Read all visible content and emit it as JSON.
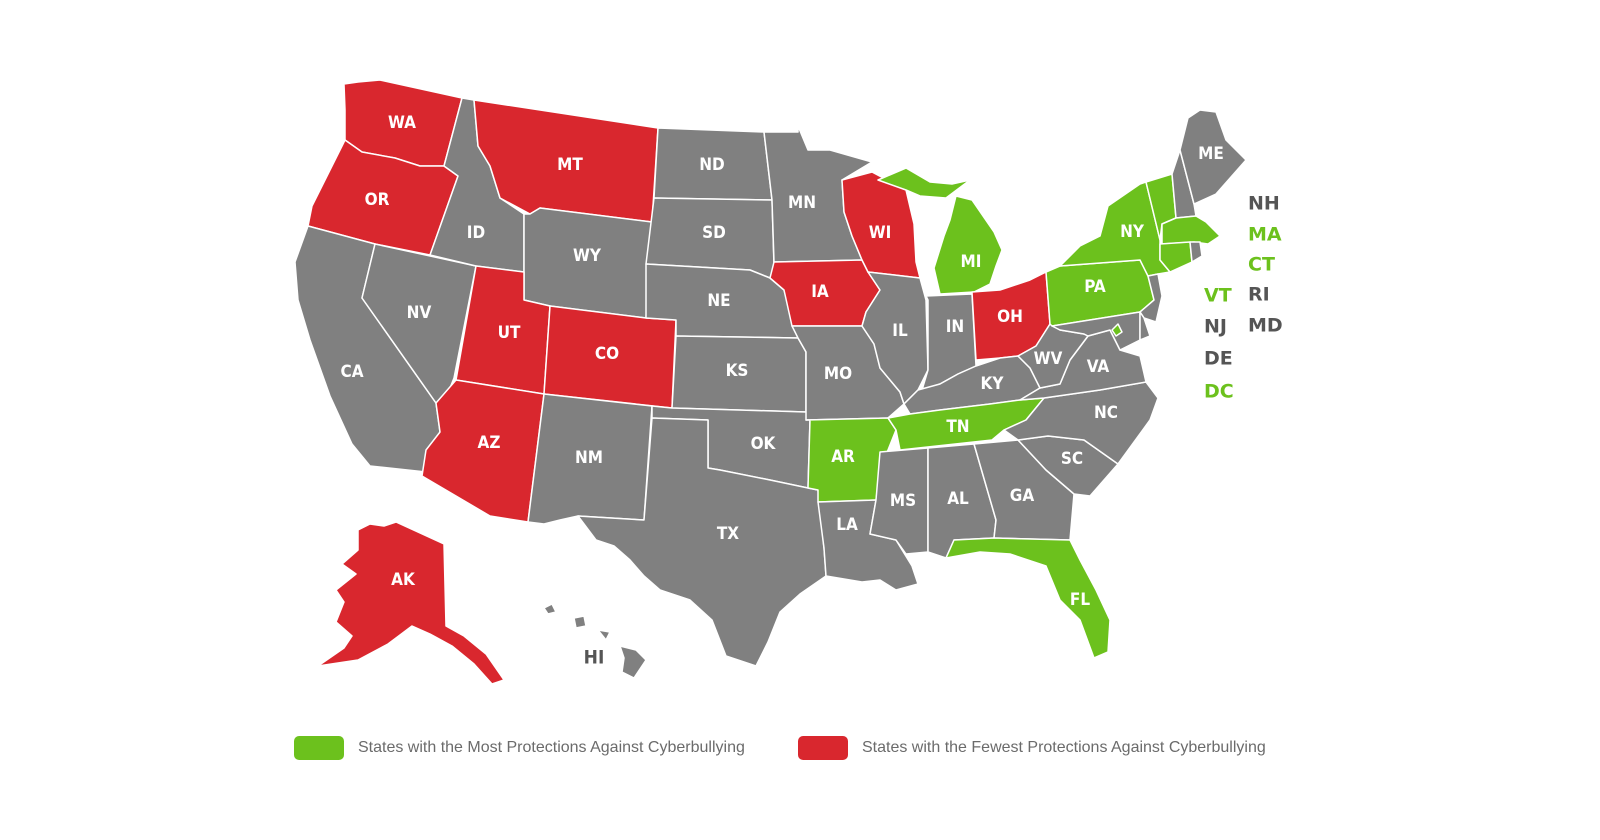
{
  "colors": {
    "most": "#6cc11d",
    "fewest": "#d9272e",
    "neutral": "#808080",
    "label_dark": "#555555"
  },
  "states": {
    "WA": {
      "label": "WA",
      "category": "fewest"
    },
    "OR": {
      "label": "OR",
      "category": "fewest"
    },
    "CA": {
      "label": "CA",
      "category": "neutral"
    },
    "NV": {
      "label": "NV",
      "category": "neutral"
    },
    "ID": {
      "label": "ID",
      "category": "neutral"
    },
    "MT": {
      "label": "MT",
      "category": "fewest"
    },
    "WY": {
      "label": "WY",
      "category": "neutral"
    },
    "UT": {
      "label": "UT",
      "category": "fewest"
    },
    "CO": {
      "label": "CO",
      "category": "fewest"
    },
    "AZ": {
      "label": "AZ",
      "category": "fewest"
    },
    "NM": {
      "label": "NM",
      "category": "neutral"
    },
    "ND": {
      "label": "ND",
      "category": "neutral"
    },
    "SD": {
      "label": "SD",
      "category": "neutral"
    },
    "NE": {
      "label": "NE",
      "category": "neutral"
    },
    "KS": {
      "label": "KS",
      "category": "neutral"
    },
    "OK": {
      "label": "OK",
      "category": "neutral"
    },
    "TX": {
      "label": "TX",
      "category": "neutral"
    },
    "MN": {
      "label": "MN",
      "category": "neutral"
    },
    "IA": {
      "label": "IA",
      "category": "fewest"
    },
    "MO": {
      "label": "MO",
      "category": "neutral"
    },
    "AR": {
      "label": "AR",
      "category": "most"
    },
    "LA": {
      "label": "LA",
      "category": "neutral"
    },
    "WI": {
      "label": "WI",
      "category": "fewest"
    },
    "IL": {
      "label": "IL",
      "category": "neutral"
    },
    "MI": {
      "label": "MI",
      "category": "most"
    },
    "IN": {
      "label": "IN",
      "category": "neutral"
    },
    "OH": {
      "label": "OH",
      "category": "fewest"
    },
    "KY": {
      "label": "KY",
      "category": "neutral"
    },
    "TN": {
      "label": "TN",
      "category": "most"
    },
    "MS": {
      "label": "MS",
      "category": "neutral"
    },
    "AL": {
      "label": "AL",
      "category": "neutral"
    },
    "GA": {
      "label": "GA",
      "category": "neutral"
    },
    "FL": {
      "label": "FL",
      "category": "most"
    },
    "SC": {
      "label": "SC",
      "category": "neutral"
    },
    "NC": {
      "label": "NC",
      "category": "neutral"
    },
    "VA": {
      "label": "VA",
      "category": "neutral"
    },
    "WV": {
      "label": "WV",
      "category": "neutral"
    },
    "PA": {
      "label": "PA",
      "category": "most"
    },
    "NY": {
      "label": "NY",
      "category": "most"
    },
    "ME": {
      "label": "ME",
      "category": "neutral"
    },
    "AK": {
      "label": "AK",
      "category": "fewest"
    },
    "HI": {
      "label": "HI",
      "category": "neutral"
    },
    "VT": {
      "label": "VT",
      "category": "most"
    },
    "NH": {
      "label": "NH",
      "category": "neutral"
    },
    "MA": {
      "label": "MA",
      "category": "most"
    },
    "CT": {
      "label": "CT",
      "category": "most"
    },
    "RI": {
      "label": "RI",
      "category": "neutral"
    },
    "NJ": {
      "label": "NJ",
      "category": "neutral"
    },
    "DE": {
      "label": "DE",
      "category": "neutral"
    },
    "MD": {
      "label": "MD",
      "category": "neutral"
    },
    "DC": {
      "label": "DC",
      "category": "most"
    }
  },
  "legend": {
    "most_label": "States with the Most Protections Against Cyberbullying",
    "fewest_label": "States with the Fewest Protections Against Cyberbullying"
  }
}
